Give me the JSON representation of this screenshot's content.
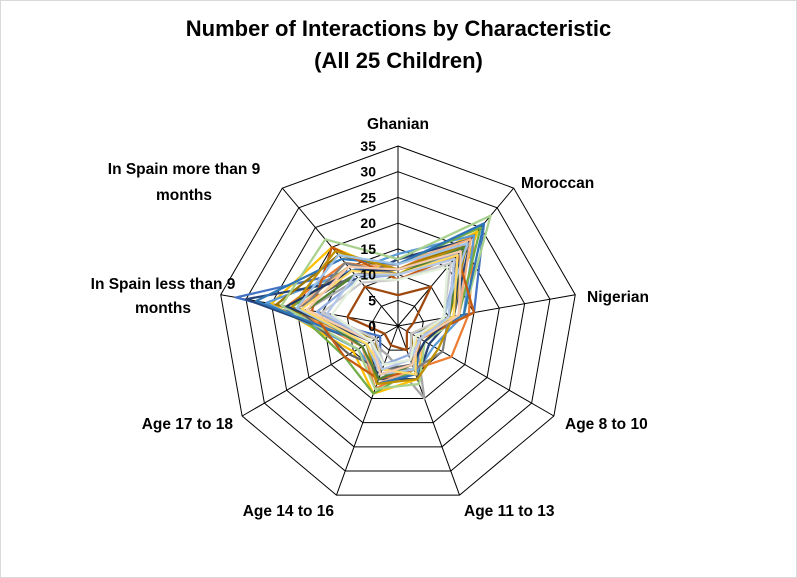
{
  "chart_data": {
    "type": "radar",
    "title": "Number of Interactions by Characteristic",
    "subtitle": "(All 25 Children)",
    "categories": [
      "Ghanian",
      "Moroccan",
      "Nigerian",
      "Age 8 to 10",
      "Age 11 to 13",
      "Age 14 to 16",
      "Age 17 to 18",
      "In Spain less than 9 months",
      "In Spain more than 9 months"
    ],
    "ticks": [
      0,
      5,
      10,
      15,
      20,
      25,
      30,
      35
    ],
    "rlim": [
      0,
      35
    ],
    "grid": true,
    "legend": "none",
    "series": [
      {
        "color": "#4472C4",
        "values": [
          12,
          26,
          15,
          3,
          8,
          10,
          4,
          32,
          14
        ]
      },
      {
        "color": "#ED7D31",
        "values": [
          11,
          23,
          14,
          12,
          9,
          13,
          8,
          22,
          16
        ]
      },
      {
        "color": "#A5A5A5",
        "values": [
          13,
          20,
          12,
          4,
          15,
          6,
          6,
          18,
          12
        ]
      },
      {
        "color": "#FFC000",
        "values": [
          10,
          24,
          10,
          6,
          11,
          14,
          10,
          25,
          20
        ]
      },
      {
        "color": "#5B9BD5",
        "values": [
          14,
          23,
          13,
          8,
          10,
          11,
          9,
          26,
          14
        ]
      },
      {
        "color": "#70AD47",
        "values": [
          12,
          25,
          12,
          5,
          9,
          14,
          12,
          21,
          15
        ]
      },
      {
        "color": "#264478",
        "values": [
          13,
          22,
          11,
          7,
          11,
          11,
          7,
          30,
          12
        ]
      },
      {
        "color": "#9E480E",
        "values": [
          6,
          10,
          3,
          2,
          5,
          4,
          3,
          10,
          10
        ]
      },
      {
        "color": "#636363",
        "values": [
          11,
          18,
          10,
          3,
          8,
          9,
          11,
          20,
          13
        ]
      },
      {
        "color": "#997300",
        "values": [
          11,
          21,
          10,
          3,
          9,
          10,
          5,
          24,
          18
        ]
      },
      {
        "color": "#8FAADC",
        "values": [
          10,
          19,
          9,
          5,
          6,
          8,
          6,
          16,
          12
        ]
      },
      {
        "color": "#F4B183",
        "values": [
          12,
          22,
          12,
          6,
          9,
          12,
          8,
          20,
          15
        ]
      },
      {
        "color": "#A9D18E",
        "values": [
          13,
          28,
          13,
          6,
          12,
          13,
          9,
          23,
          22
        ]
      },
      {
        "color": "#2E75B6",
        "values": [
          12,
          26,
          13,
          5,
          10,
          12,
          7,
          28,
          17
        ]
      },
      {
        "color": "#C55A11",
        "values": [
          9,
          18,
          15,
          5,
          9,
          11,
          12,
          17,
          20
        ]
      },
      {
        "color": "#7F7F7F",
        "values": [
          10,
          17,
          10,
          10,
          9,
          9,
          6,
          19,
          16
        ]
      },
      {
        "color": "#BF9000",
        "values": [
          11,
          20,
          11,
          9,
          11,
          12,
          7,
          21,
          19
        ]
      },
      {
        "color": "#203864",
        "values": [
          11,
          19,
          11,
          6,
          8,
          10,
          6,
          22,
          14
        ]
      },
      {
        "color": "#548235",
        "values": [
          10,
          20,
          10,
          5,
          8,
          11,
          8,
          18,
          13
        ]
      },
      {
        "color": "#9DC3E6",
        "values": [
          12,
          21,
          9,
          4,
          9,
          10,
          7,
          20,
          18
        ]
      },
      {
        "color": "#FFD966",
        "values": [
          10,
          18,
          11,
          4,
          10,
          9,
          7,
          19,
          14
        ]
      },
      {
        "color": "#C9C9C9",
        "values": [
          9,
          16,
          9,
          3,
          7,
          8,
          5,
          15,
          11
        ]
      },
      {
        "color": "#F8CBAD",
        "values": [
          11,
          19,
          12,
          5,
          8,
          10,
          6,
          18,
          15
        ]
      },
      {
        "color": "#B4C7E7",
        "values": [
          10,
          17,
          10,
          5,
          7,
          9,
          6,
          14,
          13
        ]
      },
      {
        "color": "#E2EFDA",
        "values": [
          9,
          15,
          9,
          4,
          7,
          8,
          6,
          13,
          12
        ]
      }
    ]
  }
}
